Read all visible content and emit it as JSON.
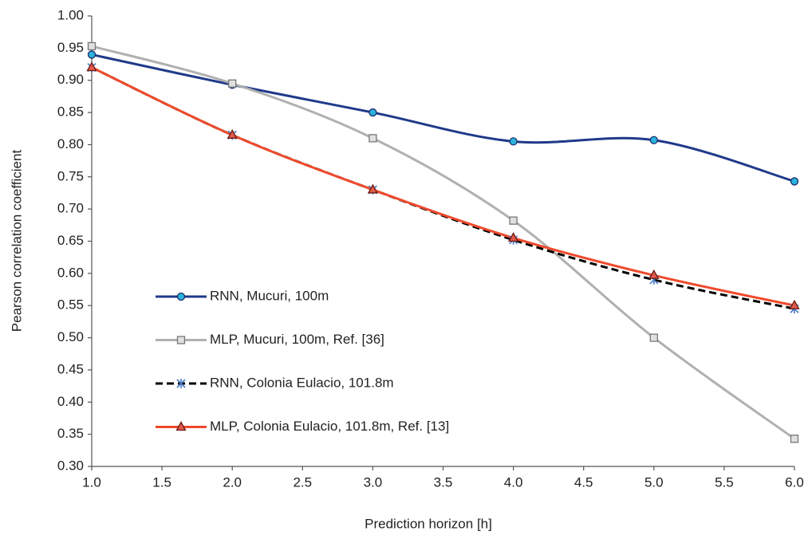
{
  "chart_data": {
    "type": "line",
    "x_label": "Prediction horizon [h]",
    "y_label": "Pearson correlation coefficient",
    "x": [
      1,
      2,
      3,
      4,
      5,
      6
    ],
    "series": [
      {
        "name": "RNN, Mucuri, 100m",
        "color": "#1f3a8a",
        "marker": "circle",
        "marker_color": "#2bb3dc",
        "dashed": false,
        "values": [
          0.94,
          0.893,
          0.85,
          0.805,
          0.807,
          0.743
        ]
      },
      {
        "name": "MLP, Mucuri, 100m, Ref. [36]",
        "color": "#b0b0b0",
        "marker": "square",
        "marker_color": "#e0e0e0",
        "dashed": false,
        "values": [
          0.953,
          0.895,
          0.81,
          0.682,
          0.5,
          0.343
        ]
      },
      {
        "name": "RNN, Colonia Eulacio, 101.8m",
        "color": "#000000",
        "marker": "asterisk",
        "marker_color": "#4a7cc9",
        "dashed": true,
        "values": [
          0.92,
          0.815,
          0.73,
          0.652,
          0.59,
          0.545
        ]
      },
      {
        "name": "MLP, Colonia Eulacio, 101.8m, Ref. [13]",
        "color": "#ef4a2c",
        "marker": "triangle",
        "marker_color": "#e05a4a",
        "dashed": false,
        "values": [
          0.92,
          0.815,
          0.73,
          0.655,
          0.597,
          0.55
        ]
      }
    ],
    "xlim": [
      1,
      6
    ],
    "xticks": [
      {
        "value": 1,
        "label": "1.0"
      },
      {
        "value": 1.5,
        "label": "1.5"
      },
      {
        "value": 2,
        "label": "2.0"
      },
      {
        "value": 2.5,
        "label": "2.5"
      },
      {
        "value": 3,
        "label": "3.0"
      },
      {
        "value": 3.5,
        "label": "3.5"
      },
      {
        "value": 4,
        "label": "4.0"
      },
      {
        "value": 4.5,
        "label": "4.5"
      },
      {
        "value": 5,
        "label": "5.0"
      },
      {
        "value": 5.5,
        "label": "5.5"
      },
      {
        "value": 6,
        "label": "6.0"
      }
    ],
    "ylim": [
      0.3,
      1
    ],
    "yticks": [
      {
        "value": 0.3,
        "label": "0.30"
      },
      {
        "value": 0.35,
        "label": "0.35"
      },
      {
        "value": 0.4,
        "label": "0.40"
      },
      {
        "value": 0.45,
        "label": "0.45"
      },
      {
        "value": 0.5,
        "label": "0.50"
      },
      {
        "value": 0.55,
        "label": "0.55"
      },
      {
        "value": 0.6,
        "label": "0.60"
      },
      {
        "value": 0.65,
        "label": "0.65"
      },
      {
        "value": 0.7,
        "label": "0.70"
      },
      {
        "value": 0.75,
        "label": "0.75"
      },
      {
        "value": 0.8,
        "label": "0.80"
      },
      {
        "value": 0.85,
        "label": "0.85"
      },
      {
        "value": 0.9,
        "label": "0.90"
      },
      {
        "value": 0.95,
        "label": "0.95"
      },
      {
        "value": 1,
        "label": "1.00"
      }
    ],
    "grid": false,
    "legend": "left"
  }
}
